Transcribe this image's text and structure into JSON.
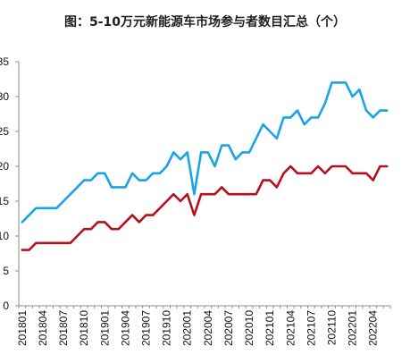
{
  "chart_data": {
    "type": "line",
    "title": "图：5-10万元新能源车市场参与者数目汇总（个）",
    "xlabel": "",
    "ylabel": "",
    "ylim": [
      0,
      35
    ],
    "y_ticks": [
      "0",
      "5",
      "10",
      "15",
      "20",
      "25",
      "30",
      "35"
    ],
    "x_tick_labels": [
      "201801",
      "201804",
      "201807",
      "201810",
      "201901",
      "201904",
      "201907",
      "201910",
      "202001",
      "202004",
      "202007",
      "202010",
      "202101",
      "202104",
      "202107",
      "202110",
      "202201",
      "202204"
    ],
    "x": [
      "201801",
      "201802",
      "201803",
      "201804",
      "201805",
      "201806",
      "201807",
      "201808",
      "201809",
      "201810",
      "201811",
      "201812",
      "201901",
      "201902",
      "201903",
      "201904",
      "201905",
      "201906",
      "201907",
      "201908",
      "201909",
      "201910",
      "201911",
      "201912",
      "202001",
      "202002",
      "202003",
      "202004",
      "202005",
      "202006",
      "202007",
      "202008",
      "202009",
      "202010",
      "202011",
      "202012",
      "202101",
      "202102",
      "202103",
      "202104",
      "202105",
      "202106",
      "202107",
      "202108",
      "202109",
      "202110",
      "202111",
      "202112",
      "202201",
      "202202",
      "202203",
      "202204",
      "202205",
      "202206"
    ],
    "series": [
      {
        "color": "#1aa3e8",
        "values": [
          12,
          13,
          14,
          14,
          14,
          14,
          15,
          16,
          17,
          18,
          18,
          19,
          19,
          17,
          17,
          17,
          19,
          18,
          18,
          19,
          19,
          20,
          22,
          21,
          22,
          16,
          22,
          22,
          20,
          23,
          23,
          21,
          22,
          22,
          24,
          26,
          25,
          24,
          27,
          27,
          28,
          26,
          27,
          27,
          29,
          32,
          32,
          32,
          30,
          31,
          28,
          27,
          28,
          28
        ]
      },
      {
        "color": "#b5121b",
        "values": [
          8,
          8,
          9,
          9,
          9,
          9,
          9,
          9,
          10,
          11,
          11,
          12,
          12,
          11,
          11,
          12,
          13,
          12,
          13,
          13,
          14,
          15,
          16,
          15,
          16,
          13,
          16,
          16,
          16,
          17,
          16,
          16,
          16,
          16,
          16,
          18,
          18,
          17,
          19,
          20,
          19,
          19,
          19,
          20,
          19,
          20,
          20,
          20,
          19,
          19,
          19,
          18,
          20,
          20
        ]
      }
    ],
    "grid": false,
    "legend": "none"
  }
}
